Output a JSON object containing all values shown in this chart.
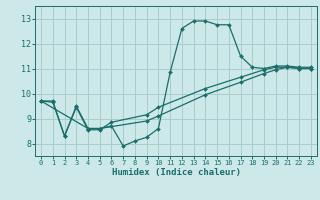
{
  "title": "",
  "xlabel": "Humidex (Indice chaleur)",
  "bg_color": "#cce8e8",
  "grid_color": "#aacccc",
  "line_color": "#1a6e6a",
  "xlim": [
    -0.5,
    23.5
  ],
  "ylim": [
    7.5,
    13.5
  ],
  "xticks": [
    0,
    1,
    2,
    3,
    4,
    5,
    6,
    7,
    8,
    9,
    10,
    11,
    12,
    13,
    14,
    15,
    16,
    17,
    18,
    19,
    20,
    21,
    22,
    23
  ],
  "yticks": [
    8,
    9,
    10,
    11,
    12,
    13
  ],
  "series1_x": [
    0,
    1,
    2,
    3,
    4,
    5,
    6,
    7,
    8,
    9,
    10,
    11,
    12,
    13,
    14,
    15,
    16,
    17,
    18,
    19,
    20,
    21,
    22,
    23
  ],
  "series1_y": [
    9.7,
    9.7,
    8.3,
    9.5,
    8.6,
    8.6,
    8.7,
    7.9,
    8.1,
    8.25,
    8.6,
    10.85,
    12.6,
    12.9,
    12.9,
    12.75,
    12.75,
    11.5,
    11.05,
    11.0,
    11.1,
    11.1,
    11.05,
    11.05
  ],
  "series2_x": [
    0,
    1,
    2,
    3,
    4,
    5,
    6,
    9,
    10,
    14,
    17,
    19,
    20,
    21,
    22,
    23
  ],
  "series2_y": [
    9.7,
    9.65,
    8.3,
    9.45,
    8.55,
    8.55,
    8.85,
    9.15,
    9.45,
    10.2,
    10.65,
    10.95,
    11.05,
    11.05,
    11.0,
    11.0
  ],
  "series3_x": [
    0,
    4,
    5,
    9,
    10,
    14,
    17,
    19,
    20,
    21,
    22,
    23
  ],
  "series3_y": [
    9.7,
    8.6,
    8.6,
    8.9,
    9.1,
    9.95,
    10.45,
    10.8,
    10.95,
    11.05,
    11.0,
    11.0
  ]
}
